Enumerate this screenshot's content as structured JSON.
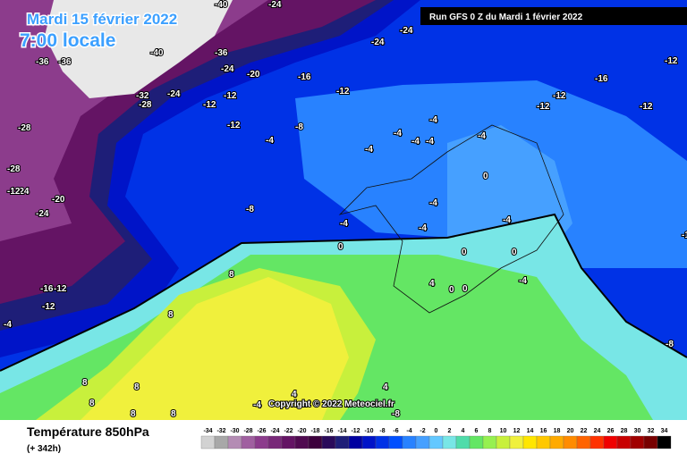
{
  "header": {
    "date": "Mardi 15 février 2022",
    "time": "7:00 locale",
    "run": "Run GFS 0 Z du Mardi 1 février 2022"
  },
  "map": {
    "labels": [
      "-40",
      "-24",
      "-24",
      "-24",
      "-40",
      "-36",
      "-24",
      "-20",
      "-16",
      "-12",
      "-36",
      "-36",
      "-32",
      "-28",
      "-24",
      "-12",
      "-12",
      "-12",
      "-12",
      "-12",
      "-12",
      "-12",
      "-16",
      "-28",
      "-28",
      "-24",
      "-20",
      "-24",
      "-12",
      "-8",
      "-4",
      "-8",
      "-4",
      "-4",
      "-4",
      "-4",
      "-4",
      "-4",
      "-4",
      "0",
      "-4",
      "-4",
      "-4",
      "0",
      "0",
      "4",
      "0",
      "0",
      "-4",
      "0",
      "8",
      "8",
      "8",
      "-16",
      "-12",
      "-4",
      "8",
      "8",
      "8",
      "8",
      "4",
      "4",
      "-8",
      "-4",
      "-8",
      "-12",
      "-1"
    ],
    "copyright": "Copyright © 2022 Meteociel.fr"
  },
  "footer": {
    "variable": "Température 850hPa",
    "lead": "(+ 342h)"
  },
  "scale": {
    "values": [
      -34,
      -32,
      -30,
      -28,
      -26,
      -24,
      -22,
      -20,
      -18,
      -16,
      -14,
      -12,
      -10,
      -8,
      -6,
      -4,
      -2,
      0,
      2,
      4,
      6,
      8,
      10,
      12,
      14,
      16,
      18,
      20,
      22,
      24,
      26,
      28,
      30,
      32,
      34
    ],
    "colors": [
      "#d2d2d2",
      "#a8a8a8",
      "#b48cb4",
      "#a060a0",
      "#8c3c8c",
      "#782878",
      "#641464",
      "#500a50",
      "#3c003c",
      "#2a0a5a",
      "#1e1e78",
      "#0000a0",
      "#0014c8",
      "#0032e6",
      "#0050ff",
      "#2882ff",
      "#46a0ff",
      "#64c8ff",
      "#78e6e6",
      "#50dcaa",
      "#64e664",
      "#96f050",
      "#c8f03c",
      "#f0f03c",
      "#ffe600",
      "#ffc800",
      "#ffaa00",
      "#ff8c00",
      "#ff6400",
      "#ff3200",
      "#f00000",
      "#c80000",
      "#a00000",
      "#780000",
      "#000000"
    ]
  }
}
